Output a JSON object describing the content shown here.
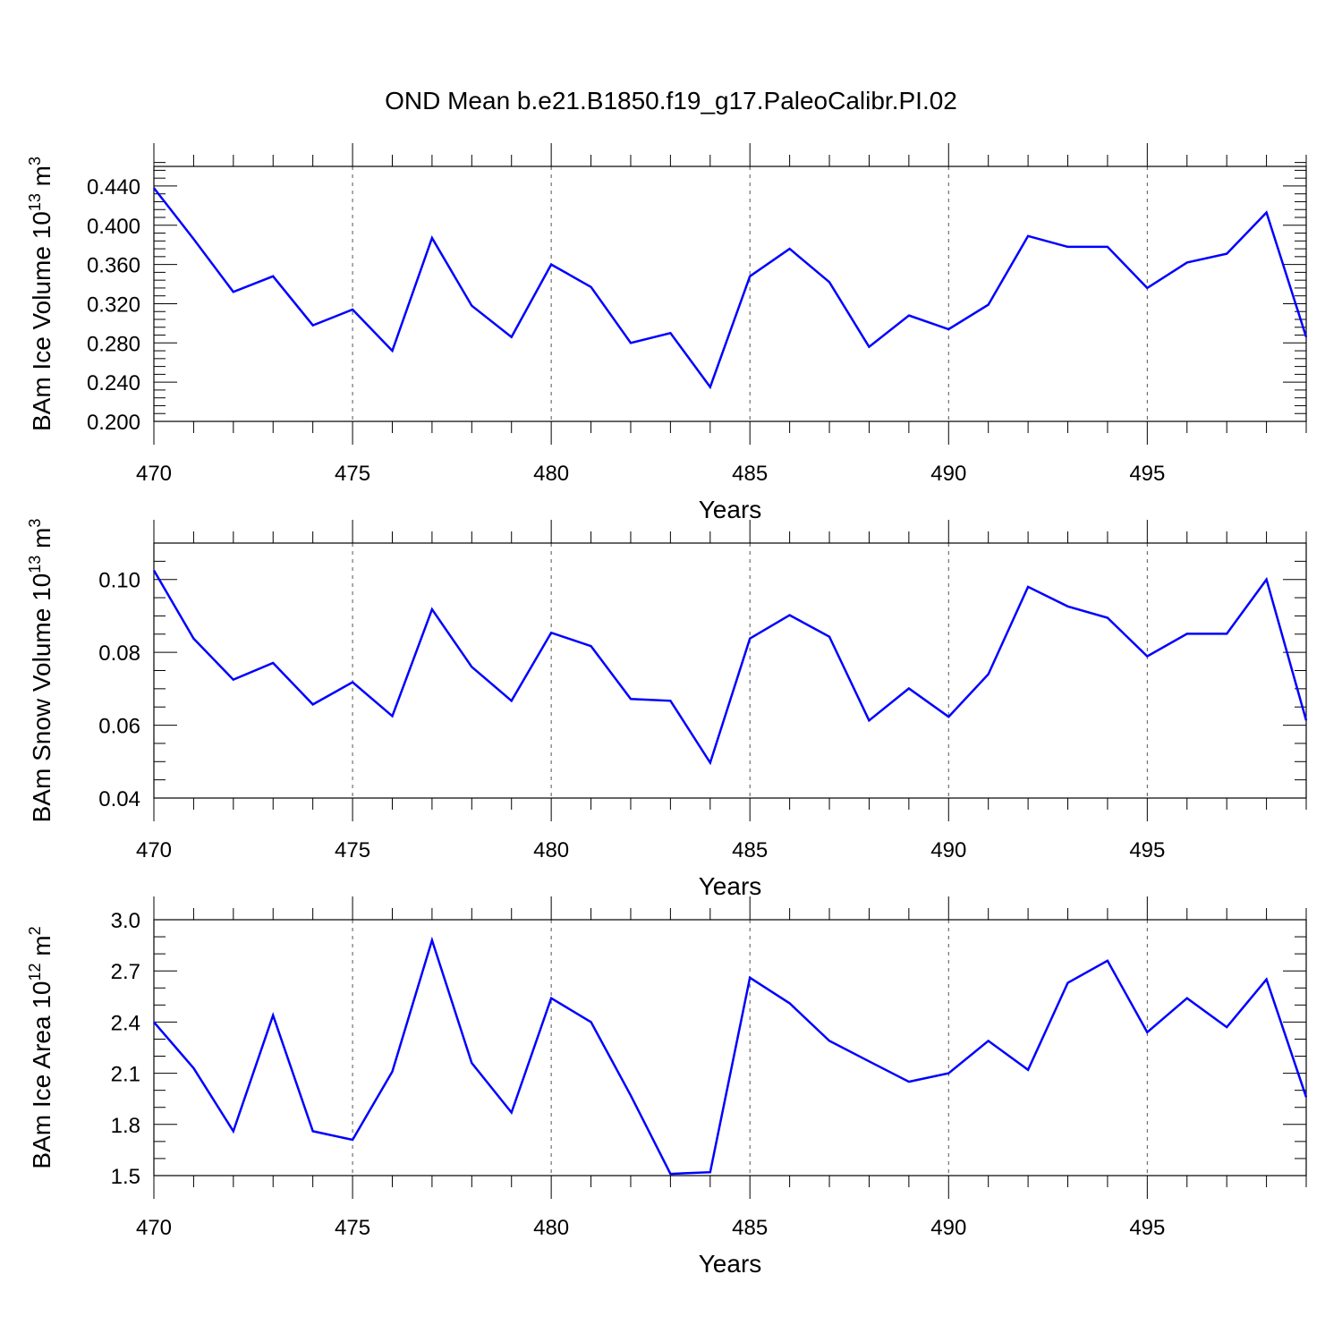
{
  "title": "OND Mean b.e21.B1850.f19_g17.PaleoCalibr.PI.02",
  "colors": {
    "line": "#0000ff",
    "axis": "#000000",
    "grid": "#555555"
  },
  "chart_data": [
    {
      "type": "line",
      "title": "",
      "xlabel": "Years",
      "ylabel": "BAm Ice Volume 10",
      "ylabel_exp": "13",
      "ylabel_unit": " m",
      "ylabel_unit_exp": "3",
      "xlim": [
        470,
        499
      ],
      "ylim": [
        0.2,
        0.46
      ],
      "xticks": [
        470,
        475,
        480,
        485,
        490,
        495
      ],
      "xtick_labels": [
        "470",
        "475",
        "480",
        "485",
        "490",
        "495"
      ],
      "yticks": [
        0.2,
        0.24,
        0.28,
        0.32,
        0.36,
        0.4,
        0.44
      ],
      "ytick_labels": [
        "0.200",
        "0.240",
        "0.280",
        "0.320",
        "0.360",
        "0.400",
        "0.440"
      ],
      "y_minor_step": 0.008,
      "grid": "x-dashed",
      "x": [
        470,
        471,
        472,
        473,
        474,
        475,
        476,
        477,
        478,
        479,
        480,
        481,
        482,
        483,
        484,
        485,
        486,
        487,
        488,
        489,
        490,
        491,
        492,
        493,
        494,
        495,
        496,
        497,
        498,
        499
      ],
      "series": [
        {
          "values": [
            0.438,
            0.386,
            0.332,
            0.348,
            0.298,
            0.314,
            0.272,
            0.387,
            0.318,
            0.286,
            0.36,
            0.337,
            0.28,
            0.29,
            0.235,
            0.348,
            0.376,
            0.342,
            0.276,
            0.308,
            0.294,
            0.319,
            0.389,
            0.378,
            0.378,
            0.336,
            0.362,
            0.371,
            0.413,
            0.286
          ]
        }
      ]
    },
    {
      "type": "line",
      "title": "",
      "xlabel": "Years",
      "ylabel": "BAm Snow Volume 10",
      "ylabel_exp": "13",
      "ylabel_unit": " m",
      "ylabel_unit_exp": "3",
      "xlim": [
        470,
        499
      ],
      "ylim": [
        0.04,
        0.11
      ],
      "xticks": [
        470,
        475,
        480,
        485,
        490,
        495
      ],
      "xtick_labels": [
        "470",
        "475",
        "480",
        "485",
        "490",
        "495"
      ],
      "yticks": [
        0.04,
        0.06,
        0.08,
        0.1
      ],
      "ytick_labels": [
        "0.04",
        "0.06",
        "0.08",
        "0.10"
      ],
      "y_minor_step": 0.005,
      "grid": "x-dashed",
      "x": [
        470,
        471,
        472,
        473,
        474,
        475,
        476,
        477,
        478,
        479,
        480,
        481,
        482,
        483,
        484,
        485,
        486,
        487,
        488,
        489,
        490,
        491,
        492,
        493,
        494,
        495,
        496,
        497,
        498,
        499
      ],
      "series": [
        {
          "values": [
            0.1025,
            0.0838,
            0.0725,
            0.0771,
            0.0657,
            0.0718,
            0.0625,
            0.0918,
            0.076,
            0.0667,
            0.0854,
            0.0817,
            0.0672,
            0.0667,
            0.0497,
            0.0838,
            0.0902,
            0.0843,
            0.0613,
            0.0701,
            0.0623,
            0.074,
            0.098,
            0.0926,
            0.0895,
            0.0789,
            0.0851,
            0.0851,
            0.1,
            0.0613
          ]
        }
      ]
    },
    {
      "type": "line",
      "title": "",
      "xlabel": "Years",
      "ylabel": "BAm Ice Area 10",
      "ylabel_exp": "12",
      "ylabel_unit": " m",
      "ylabel_unit_exp": "2",
      "xlim": [
        470,
        499
      ],
      "ylim": [
        1.5,
        3.0
      ],
      "xticks": [
        470,
        475,
        480,
        485,
        490,
        495
      ],
      "xtick_labels": [
        "470",
        "475",
        "480",
        "485",
        "490",
        "495"
      ],
      "yticks": [
        1.5,
        1.8,
        2.1,
        2.4,
        2.7,
        3.0
      ],
      "ytick_labels": [
        "1.5",
        "1.8",
        "2.1",
        "2.4",
        "2.7",
        "3.0"
      ],
      "y_minor_step": 0.1,
      "grid": "x-dashed",
      "x": [
        470,
        471,
        472,
        473,
        474,
        475,
        476,
        477,
        478,
        479,
        480,
        481,
        482,
        483,
        484,
        485,
        486,
        487,
        488,
        489,
        490,
        491,
        492,
        493,
        494,
        495,
        496,
        497,
        498,
        499
      ],
      "series": [
        {
          "values": [
            2.4,
            2.13,
            1.76,
            2.44,
            1.76,
            1.71,
            2.11,
            2.88,
            2.16,
            1.87,
            2.54,
            2.4,
            1.97,
            1.51,
            1.52,
            2.66,
            2.51,
            2.29,
            2.17,
            2.05,
            2.1,
            2.29,
            2.12,
            2.63,
            2.76,
            2.34,
            2.54,
            2.37,
            2.65,
            1.96
          ]
        }
      ]
    }
  ]
}
